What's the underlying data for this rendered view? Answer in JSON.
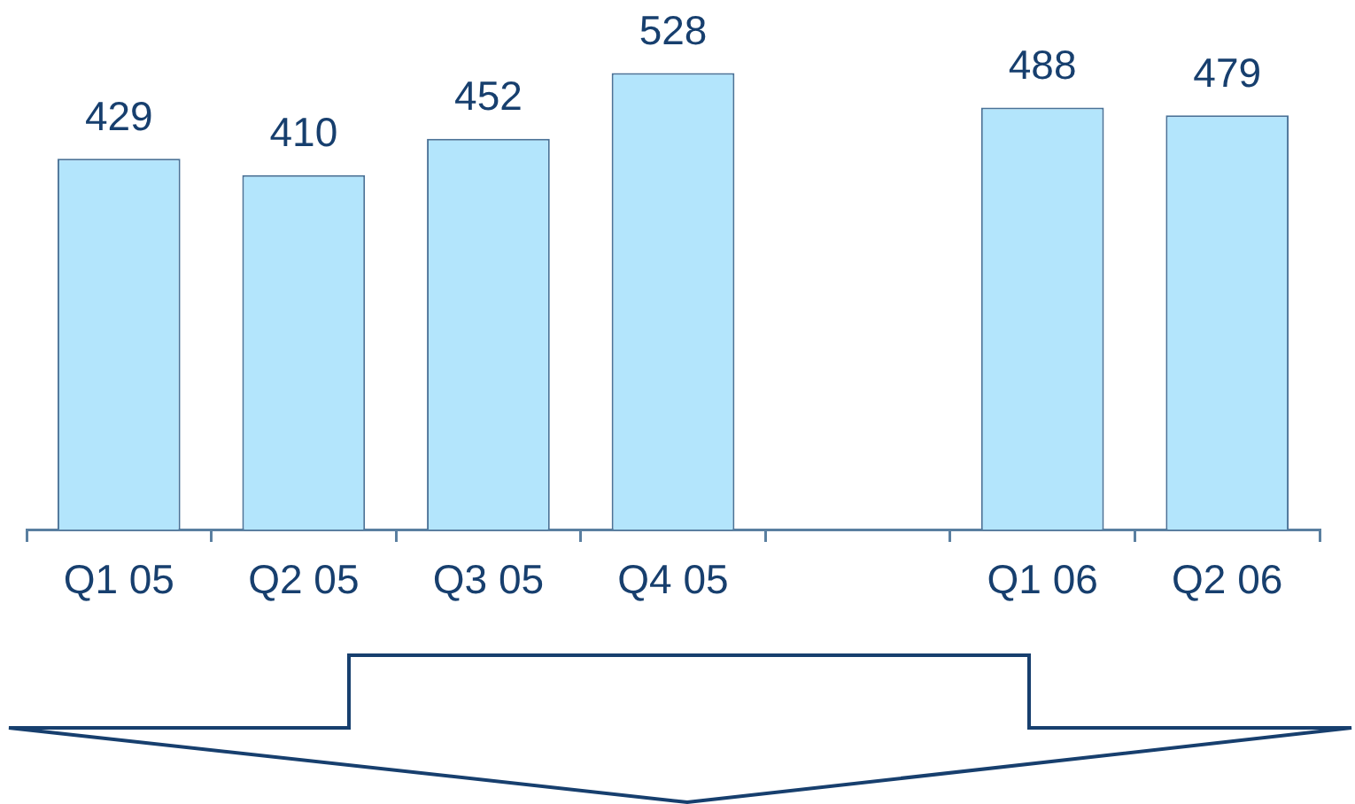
{
  "chart_data": {
    "type": "bar",
    "categories": [
      "Q1 05",
      "Q2 05",
      "Q3 05",
      "Q4 05",
      null,
      "Q1 06",
      "Q2 06"
    ],
    "values": [
      429,
      410,
      452,
      528,
      null,
      488,
      479
    ],
    "color": "#b3e5fc",
    "data_labels": true,
    "tick_labels": "x"
  }
}
